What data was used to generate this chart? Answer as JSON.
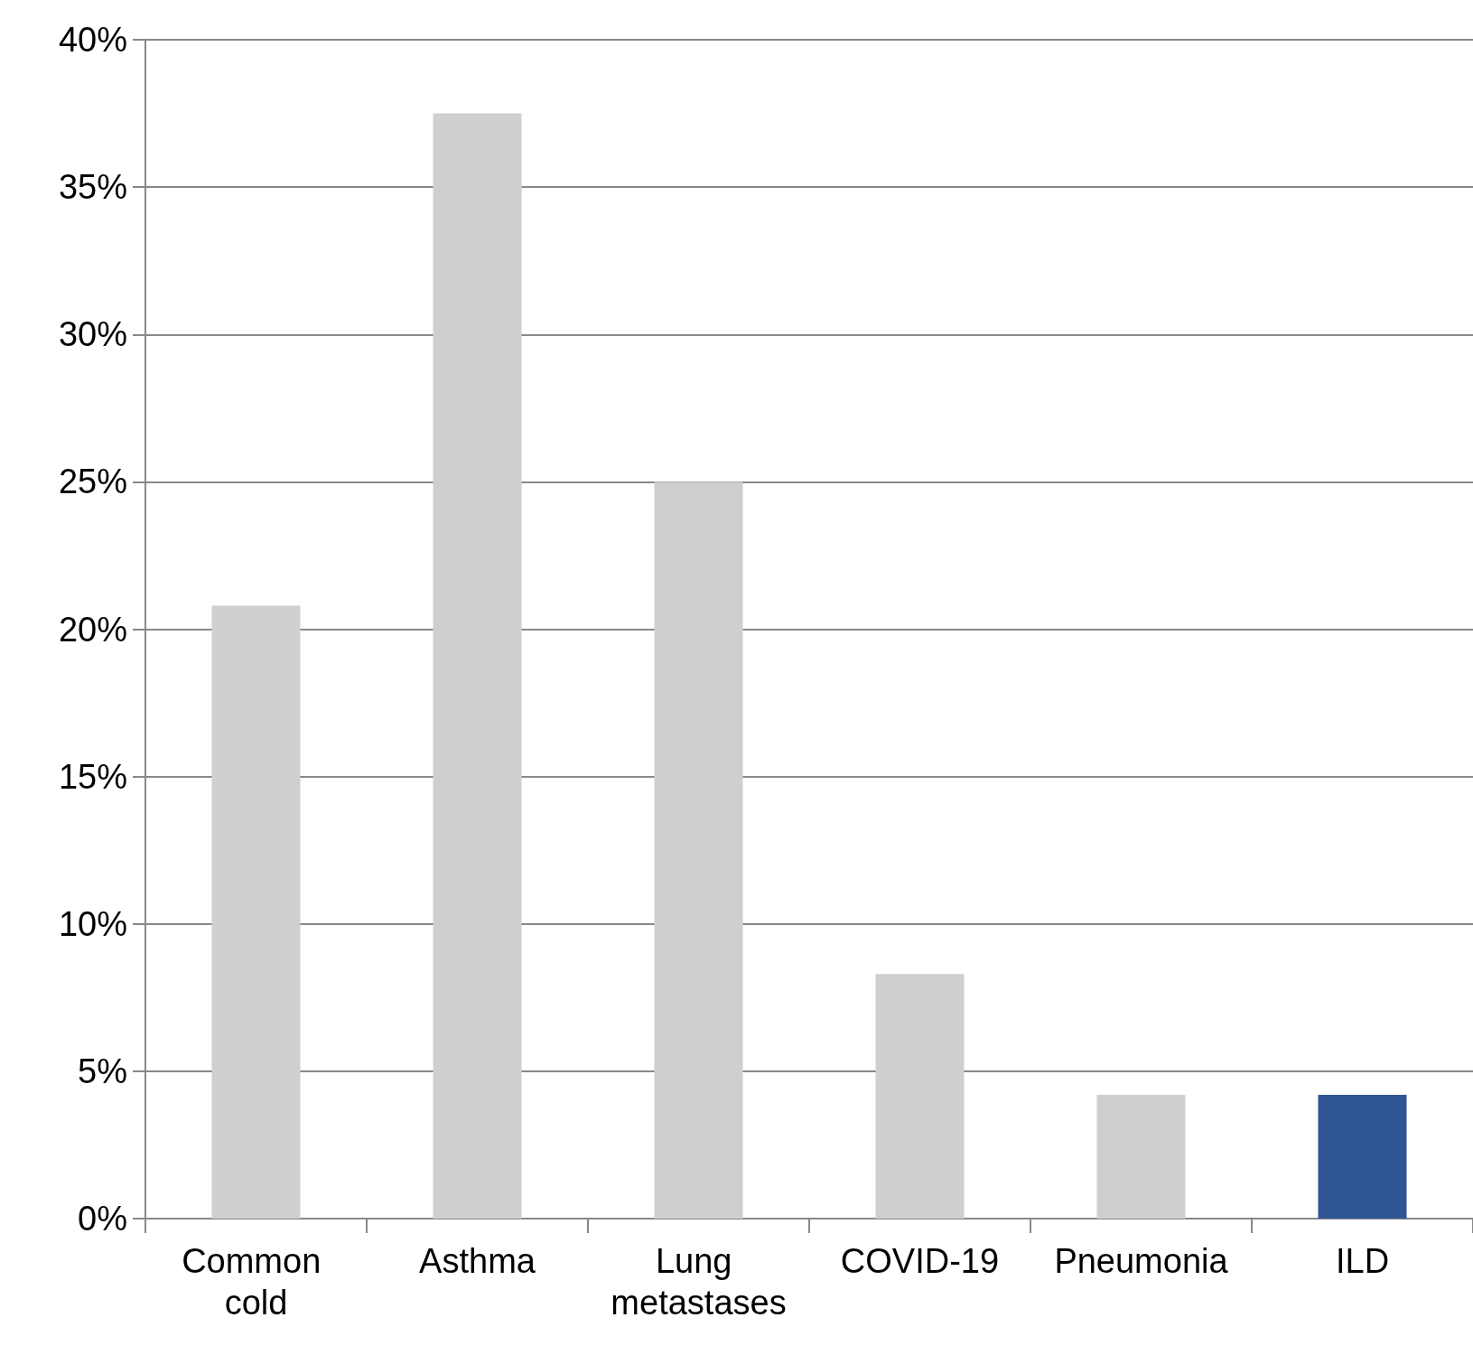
{
  "chart_data": {
    "type": "bar",
    "categories": [
      "Common cold",
      "Asthma",
      "Lung metastases",
      "COVID-19",
      "Pneumonia",
      "ILD"
    ],
    "values": [
      20.8,
      37.5,
      25,
      8.3,
      4.2,
      4.2
    ],
    "colors": [
      "#d0cfd0",
      "#d0cfd0",
      "#d0cfd0",
      "#d0cfd0",
      "#d0cfd0",
      "#2f5597"
    ],
    "ylim": [
      0,
      40
    ],
    "yticks": [
      {
        "value": 0,
        "label": "0%"
      },
      {
        "value": 5,
        "label": "5%"
      },
      {
        "value": 10,
        "label": "10%"
      },
      {
        "value": 15,
        "label": "15%"
      },
      {
        "value": 20,
        "label": "20%"
      },
      {
        "value": 25,
        "label": "25%"
      },
      {
        "value": 30,
        "label": "30%"
      },
      {
        "value": 35,
        "label": "35%"
      },
      {
        "value": 40,
        "label": "40%"
      }
    ],
    "grid": "y"
  }
}
